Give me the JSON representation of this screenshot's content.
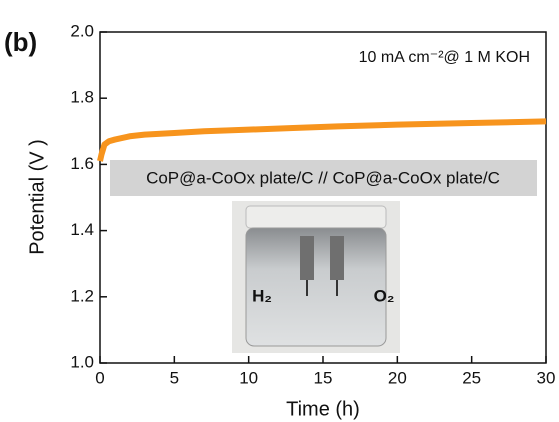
{
  "chart_data": {
    "type": "line",
    "panel_label": "(b)",
    "annotation": "10 mA cm⁻²@ 1 M KOH",
    "xlabel": "Time (h)",
    "ylabel": "Potential (V )",
    "inset_labels": [
      "H₂",
      "O₂"
    ],
    "x": [
      0,
      0.1,
      0.3,
      0.6,
      1,
      2,
      3,
      5,
      7,
      10,
      13,
      16,
      20,
      25,
      30
    ],
    "series": [
      {
        "name": "CoP@a-CoOx plate/C // CoP@a-CoOx plate/C",
        "color": "#f7941d",
        "values": [
          1.61,
          1.63,
          1.66,
          1.67,
          1.675,
          1.685,
          1.69,
          1.695,
          1.7,
          1.705,
          1.71,
          1.715,
          1.72,
          1.725,
          1.73
        ]
      }
    ],
    "xlim": [
      0,
      30
    ],
    "xticks": [
      0,
      5,
      10,
      15,
      20,
      25,
      30
    ],
    "ylim": [
      1.0,
      2.0
    ],
    "yticks": [
      {
        "value": 1.0,
        "label": "1.0"
      },
      1.2,
      1.4,
      1.6,
      1.8,
      {
        "value": 2.0,
        "label": "2.0"
      }
    ]
  }
}
